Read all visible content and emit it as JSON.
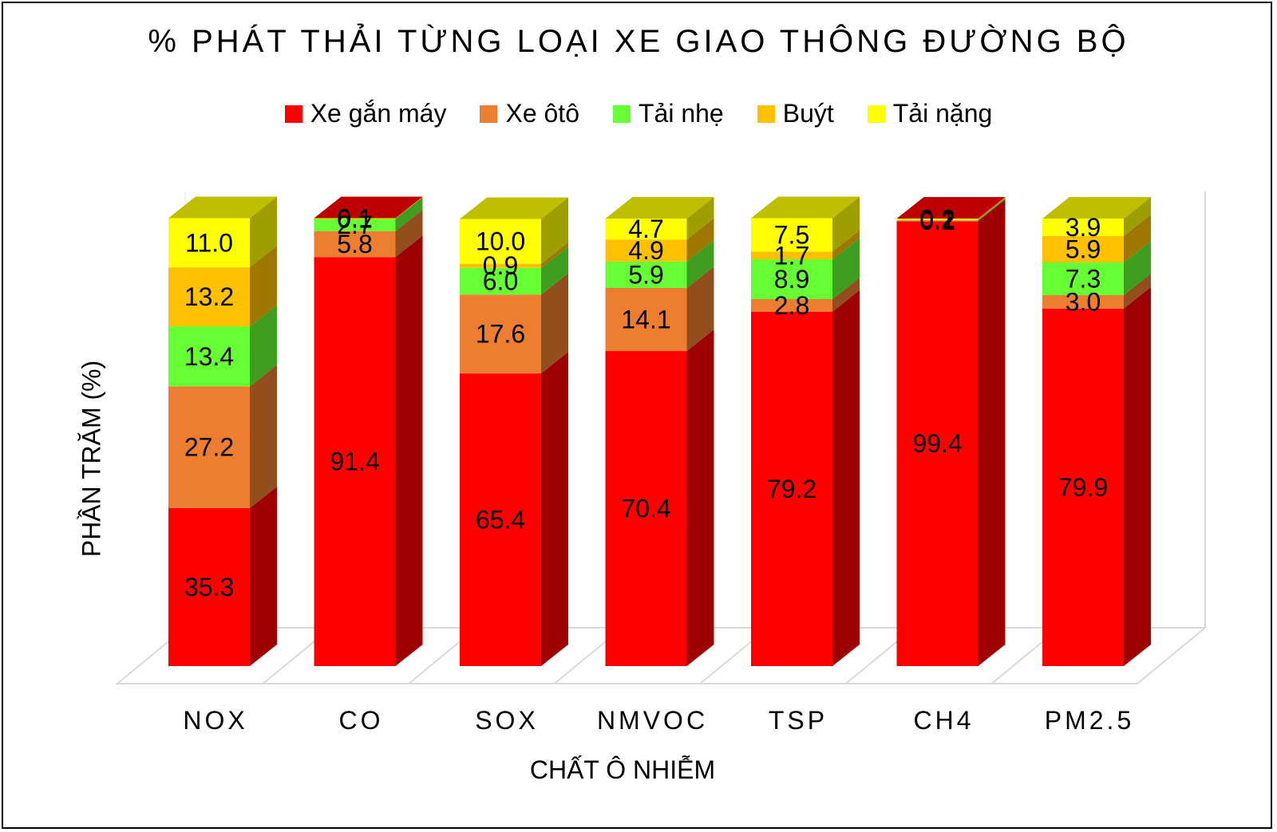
{
  "title": "% PHÁT THẢI TỪNG LOẠI XE GIAO THÔNG ĐƯỜNG BỘ",
  "legend": [
    {
      "label": "Xe gắn máy",
      "color": "#ff0000"
    },
    {
      "label": "Xe ôtô",
      "color": "#ed7d31"
    },
    {
      "label": "Tải nhẹ",
      "color": "#66ff33"
    },
    {
      "label": "Buýt",
      "color": "#ffc000"
    },
    {
      "label": "Tải nặng",
      "color": "#ffff00"
    }
  ],
  "chart_data": {
    "type": "bar",
    "stacked": true,
    "three_d": true,
    "title": "% PHÁT THẢI TỪNG LOẠI XE GIAO THÔNG ĐƯỜNG BỘ",
    "xlabel": "CHẤT Ô NHIỄM",
    "ylabel": "PHẦN TRĂM (%)",
    "ylim": [
      0,
      100
    ],
    "legend_position": "top",
    "categories": [
      "NOX",
      "CO",
      "SOX",
      "NMVOC",
      "TSP",
      "CH4",
      "PM2.5"
    ],
    "series": [
      {
        "name": "Xe gắn máy",
        "color": "#ff0000",
        "values": [
          35.3,
          91.4,
          65.4,
          70.4,
          79.2,
          99.4,
          79.9
        ]
      },
      {
        "name": "Xe ôtô",
        "color": "#ed7d31",
        "values": [
          27.2,
          5.8,
          17.6,
          14.1,
          2.8,
          0.2,
          3.0
        ]
      },
      {
        "name": "Tải nhẹ",
        "color": "#66ff33",
        "values": [
          13.4,
          2.7,
          6.0,
          5.9,
          8.9,
          0.1,
          7.3
        ]
      },
      {
        "name": "Buýt",
        "color": "#ffc000",
        "values": [
          13.2,
          0.1,
          0.9,
          4.9,
          1.7,
          0.1,
          5.9
        ]
      },
      {
        "name": "Tải nặng",
        "color": "#ffff00",
        "values": [
          11.0,
          0.1,
          10.0,
          4.7,
          7.5,
          0.2,
          3.9
        ]
      }
    ]
  }
}
